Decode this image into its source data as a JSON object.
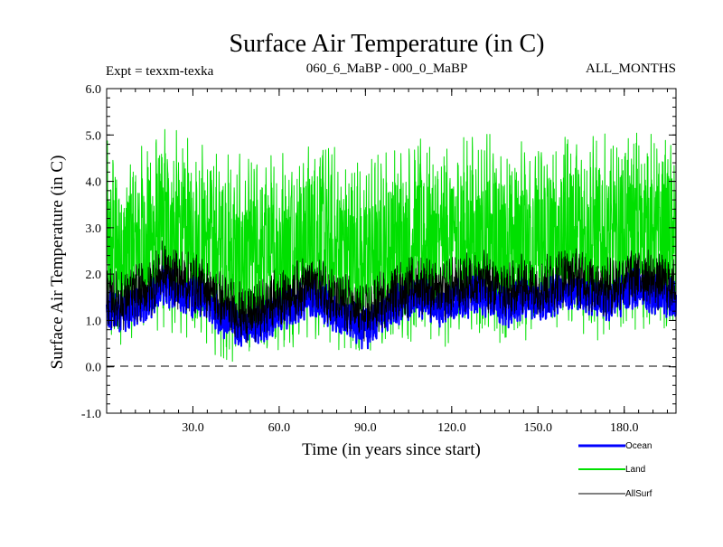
{
  "chart_data": {
    "type": "line",
    "title": "Surface Air Temperature (in C)",
    "subtitle_left": "Expt = texxm-texka",
    "subtitle_center": "060_6_MaBP - 000_0_MaBP",
    "subtitle_right": "ALL_MONTHS",
    "xlabel": "Time (in years since start)",
    "ylabel": "Surface Air Temperature (in C)",
    "xlim": [
      0,
      198
    ],
    "ylim": [
      -1.0,
      6.0
    ],
    "x_ticks": [
      30,
      60,
      90,
      120,
      150,
      180
    ],
    "x_tick_labels": [
      "30.0",
      "60.0",
      "90.0",
      "120.0",
      "150.0",
      "180.0"
    ],
    "y_ticks": [
      -1,
      0,
      1,
      2,
      3,
      4,
      5,
      6
    ],
    "y_tick_labels": [
      "-1.0",
      "0.0",
      "1.0",
      "2.0",
      "3.0",
      "4.0",
      "5.0",
      "6.0"
    ],
    "zero_line": true,
    "series_years": [
      0,
      5,
      10,
      15,
      20,
      25,
      30,
      35,
      40,
      45,
      50,
      55,
      60,
      65,
      70,
      75,
      80,
      85,
      90,
      95,
      100,
      105,
      110,
      115,
      120,
      125,
      130,
      135,
      140,
      145,
      150,
      155,
      160,
      165,
      170,
      175,
      180,
      185,
      190,
      195,
      198
    ],
    "series": [
      {
        "name": "Ocean",
        "color": "#0000ff",
        "mean": [
          1.2,
          1.1,
          1.3,
          1.4,
          1.8,
          1.6,
          1.5,
          1.4,
          1.1,
          0.9,
          0.8,
          1.0,
          1.2,
          1.3,
          1.5,
          1.4,
          1.1,
          1.0,
          0.8,
          1.1,
          1.3,
          1.4,
          1.5,
          1.3,
          1.4,
          1.5,
          1.6,
          1.4,
          1.3,
          1.5,
          1.4,
          1.5,
          1.7,
          1.6,
          1.5,
          1.4,
          1.6,
          1.7,
          1.6,
          1.5,
          1.4
        ],
        "amplitude": 0.35
      },
      {
        "name": "Land",
        "color": "#00e000",
        "mean": [
          2.6,
          2.4,
          2.6,
          2.7,
          3.0,
          2.8,
          2.7,
          2.7,
          2.4,
          2.3,
          2.3,
          2.4,
          2.5,
          2.6,
          2.8,
          2.7,
          2.5,
          2.4,
          2.3,
          2.5,
          2.7,
          2.7,
          2.8,
          2.6,
          2.7,
          2.8,
          2.8,
          2.7,
          2.6,
          2.8,
          2.7,
          2.7,
          3.0,
          2.9,
          2.8,
          2.7,
          2.9,
          3.0,
          2.9,
          2.8,
          2.7
        ],
        "amplitude": 1.7
      },
      {
        "name": "AllSurf",
        "color": "#000000",
        "mean": [
          1.5,
          1.4,
          1.6,
          1.7,
          2.1,
          1.9,
          1.8,
          1.7,
          1.4,
          1.2,
          1.1,
          1.3,
          1.5,
          1.6,
          1.8,
          1.7,
          1.4,
          1.3,
          1.1,
          1.4,
          1.6,
          1.7,
          1.8,
          1.6,
          1.7,
          1.8,
          1.9,
          1.7,
          1.6,
          1.8,
          1.7,
          1.8,
          2.0,
          1.9,
          1.8,
          1.7,
          1.9,
          2.0,
          1.9,
          1.8,
          1.7
        ],
        "amplitude": 0.5
      }
    ]
  },
  "legend": {
    "ocean": "Ocean",
    "land": "Land",
    "allsurf": "AllSurf"
  },
  "colors": {
    "ocean": "#0000ff",
    "land": "#00e000",
    "allsurf": "#000000"
  }
}
